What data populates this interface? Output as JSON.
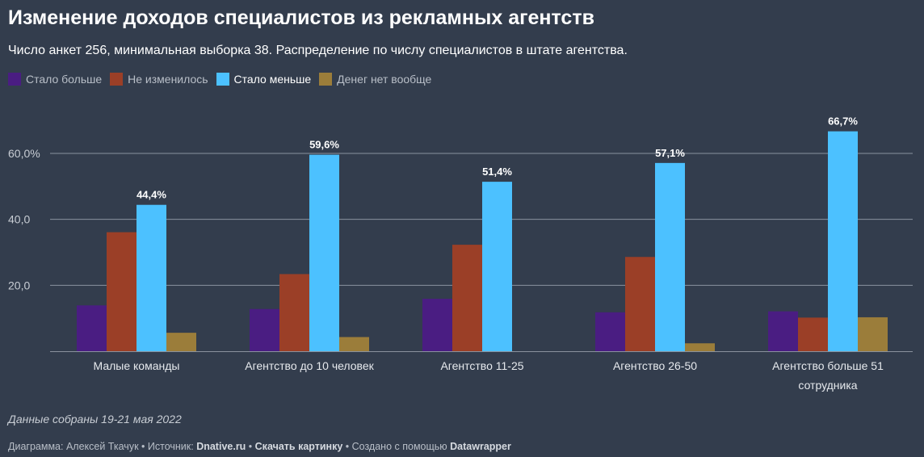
{
  "title": "Изменение доходов специалистов из рекламных агентств",
  "subtitle": "Число анкет 256, минимальная выборка 38. Распределение по числу специалистов в штате агентства.",
  "note": "Данные собраны 19-21 мая 2022",
  "footer": {
    "chart_label": "Диаграмма: Алексей Ткачук",
    "sep1": " • ",
    "source_label": "Источник: ",
    "source_link": "Dnative.ru",
    "sep2": " • ",
    "download_link": "Скачать картинку",
    "sep3": " • ",
    "created_label": "Создано с помощью ",
    "created_link": "Datawrapper"
  },
  "colors": {
    "more": "#4a1d82",
    "same": "#9b3f27",
    "less": "#4cc1ff",
    "none": "#9b7d3a",
    "grid": "#8a929e",
    "axis_text": "#c8cdd4"
  },
  "chart_data": {
    "type": "bar",
    "title": "Изменение доходов специалистов из рекламных агентств",
    "categories": [
      [
        "Малые команды"
      ],
      [
        "Агентство до 10 человек"
      ],
      [
        "Агентство 11-25"
      ],
      [
        "Агентство 26-50"
      ],
      [
        "Агентство больше 51",
        "сотрудника"
      ]
    ],
    "series": [
      {
        "name": "Стало больше",
        "color": "#4a1d82",
        "values": [
          13.9,
          12.8,
          15.9,
          11.8,
          12.1
        ]
      },
      {
        "name": "Не изменилось",
        "color": "#9b3f27",
        "values": [
          36.1,
          23.4,
          32.3,
          28.6,
          10.2
        ]
      },
      {
        "name": "Стало меньше",
        "color": "#4cc1ff",
        "values": [
          44.4,
          59.6,
          51.4,
          57.1,
          66.7
        ],
        "labels": [
          "44,4%",
          "59,6%",
          "51,4%",
          "57,1%",
          "66,7%"
        ]
      },
      {
        "name": "Денег нет вообще",
        "color": "#9b7d3a",
        "values": [
          5.6,
          4.3,
          0,
          2.4,
          10.3
        ]
      }
    ],
    "yticks": [
      {
        "value": 20,
        "label": "20,0"
      },
      {
        "value": 40,
        "label": "40,0"
      },
      {
        "value": 60,
        "label": "60,0%"
      }
    ],
    "ylim": [
      0,
      70
    ],
    "legend_position": "top-left",
    "grid": true
  }
}
